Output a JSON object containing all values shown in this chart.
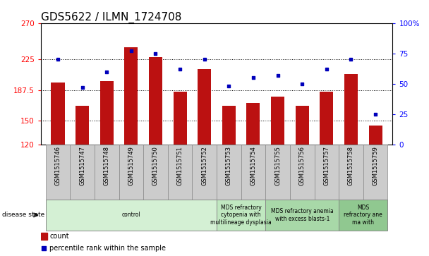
{
  "title": "GDS5622 / ILMN_1724708",
  "samples": [
    "GSM1515746",
    "GSM1515747",
    "GSM1515748",
    "GSM1515749",
    "GSM1515750",
    "GSM1515751",
    "GSM1515752",
    "GSM1515753",
    "GSM1515754",
    "GSM1515755",
    "GSM1515756",
    "GSM1515757",
    "GSM1515758",
    "GSM1515759"
  ],
  "counts": [
    197,
    168,
    198,
    240,
    228,
    185,
    213,
    168,
    171,
    179,
    168,
    185,
    207,
    144
  ],
  "percentiles": [
    70,
    47,
    60,
    77,
    75,
    62,
    70,
    48,
    55,
    57,
    50,
    62,
    70,
    25
  ],
  "ylim_left": [
    120,
    270
  ],
  "ylim_right": [
    0,
    100
  ],
  "yticks_left": [
    120,
    150,
    187.5,
    225,
    270
  ],
  "ytick_labels_left": [
    "120",
    "150",
    "187.5",
    "225",
    "270"
  ],
  "yticks_right": [
    0,
    25,
    50,
    75,
    100
  ],
  "ytick_labels_right": [
    "0",
    "25",
    "50",
    "75",
    "100%"
  ],
  "bar_color": "#bb1111",
  "dot_color": "#0000bb",
  "bar_width": 0.55,
  "disease_groups": [
    {
      "label": "control",
      "start": 0,
      "end": 7,
      "color": "#d4f0d4"
    },
    {
      "label": "MDS refractory\ncytopenia with\nmultilineage dysplasia",
      "start": 7,
      "end": 9,
      "color": "#c0e8c0"
    },
    {
      "label": "MDS refractory anemia\nwith excess blasts-1",
      "start": 9,
      "end": 12,
      "color": "#a8d8a8"
    },
    {
      "label": "MDS\nrefractory ane\nma with",
      "start": 12,
      "end": 14,
      "color": "#90c890"
    }
  ],
  "legend_count_label": "count",
  "legend_percentile_label": "percentile rank within the sample",
  "hline_values": [
    150,
    187.5,
    225
  ],
  "title_fontsize": 11,
  "tick_fontsize": 7.5,
  "sample_fontsize": 6,
  "disease_fontsize": 5.5
}
